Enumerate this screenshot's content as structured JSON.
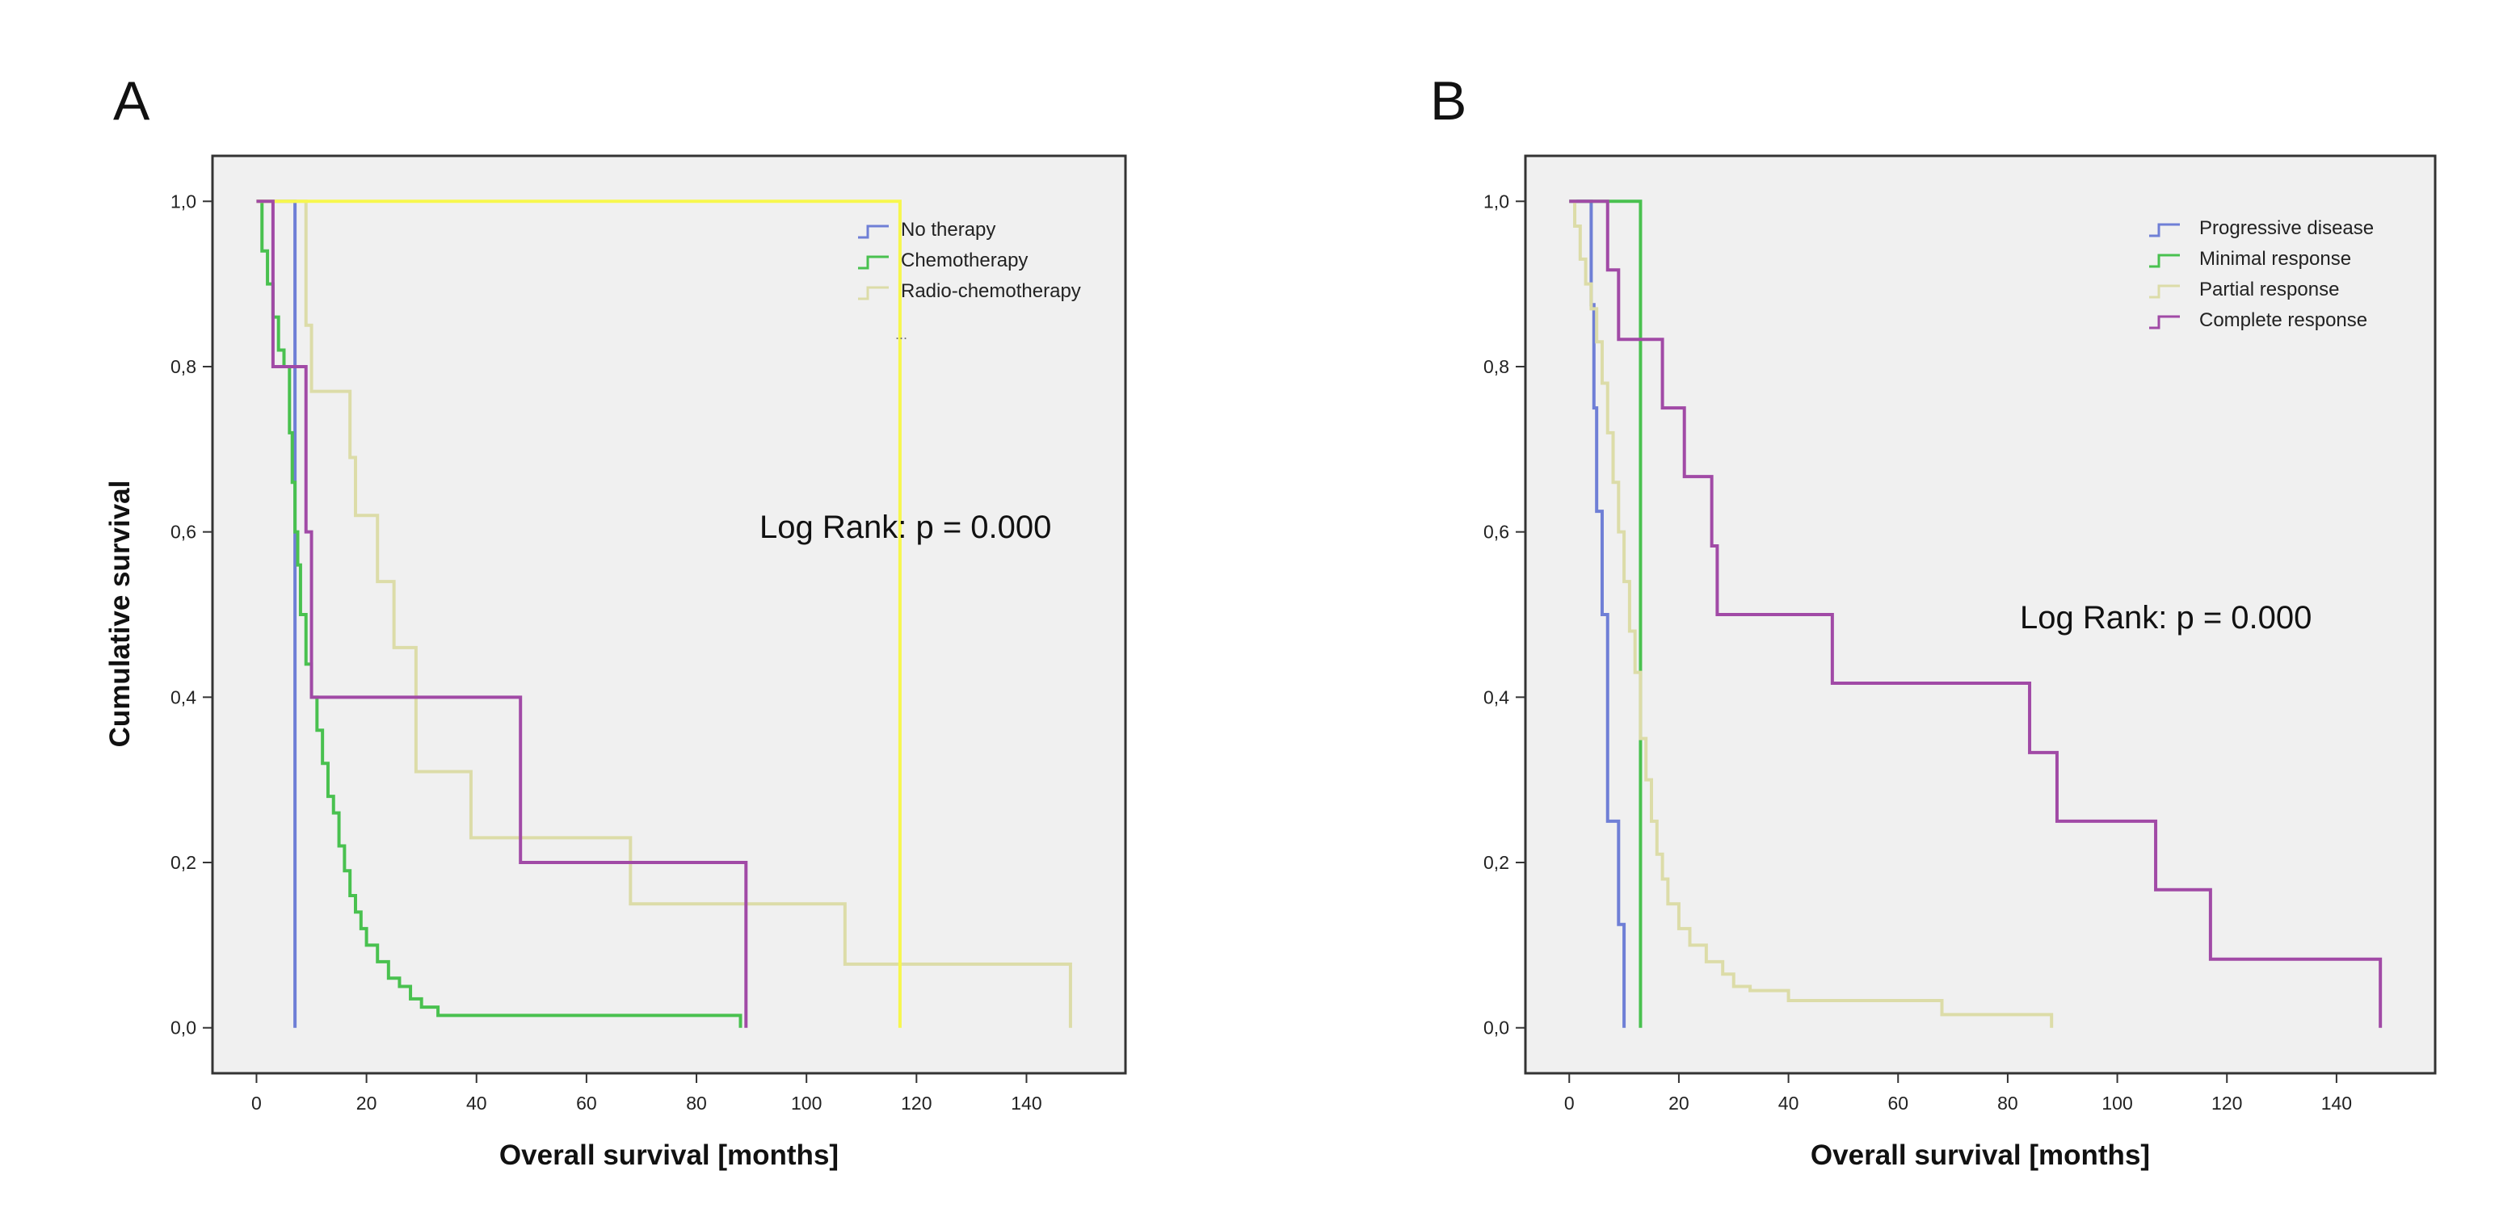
{
  "colors": {
    "blue": "#6f7fd6",
    "green": "#49c14f",
    "tan": "#dcdca8",
    "yellow": "#f7f74d",
    "purple": "#a14aa6"
  },
  "chart_data": [
    {
      "panel": "A",
      "type": "line",
      "step": true,
      "xlabel": "Overall survival [months]",
      "ylabel": "Cumulative survival",
      "xlim": [
        -8,
        158
      ],
      "ylim": [
        -0.055,
        1.055
      ],
      "xticks": [
        0,
        20,
        40,
        60,
        80,
        100,
        120,
        140
      ],
      "yticks": [
        0,
        0.2,
        0.4,
        0.6,
        0.8,
        1.0
      ],
      "ytick_labels": [
        "0,0",
        "0,2",
        "0,4",
        "0,6",
        "0,8",
        "1,0"
      ],
      "legend_position": "top-right",
      "annotation": "Log Rank: p = 0.000",
      "legend_extra": "...",
      "series": [
        {
          "name": "No therapy",
          "color_key": "blue",
          "in_legend": true,
          "x": [
            0,
            7,
            7
          ],
          "y": [
            1.0,
            1.0,
            0.0
          ]
        },
        {
          "name": "Chemotherapy",
          "color_key": "green",
          "in_legend": true,
          "x": [
            0,
            1,
            2,
            3,
            4,
            5,
            6,
            6.5,
            7,
            7.5,
            8,
            9,
            10,
            11,
            12,
            13,
            14,
            15,
            16,
            17,
            18,
            19,
            20,
            22,
            24,
            26,
            28,
            30,
            33,
            40,
            60,
            88,
            88
          ],
          "y": [
            1.0,
            0.94,
            0.9,
            0.86,
            0.82,
            0.8,
            0.72,
            0.66,
            0.6,
            0.56,
            0.5,
            0.44,
            0.4,
            0.36,
            0.32,
            0.28,
            0.26,
            0.22,
            0.19,
            0.16,
            0.14,
            0.12,
            0.1,
            0.08,
            0.06,
            0.05,
            0.035,
            0.025,
            0.015,
            0.015,
            0.015,
            0.015,
            0.0
          ]
        },
        {
          "name": "Radio-chemotherapy",
          "color_key": "tan",
          "in_legend": true,
          "x": [
            0,
            8,
            9,
            10,
            16,
            17,
            18,
            22,
            25,
            29,
            39,
            68,
            107,
            148,
            148
          ],
          "y": [
            1.0,
            1.0,
            0.85,
            0.77,
            0.77,
            0.69,
            0.62,
            0.54,
            0.46,
            0.31,
            0.23,
            0.15,
            0.077,
            0.077,
            0.0
          ]
        },
        {
          "name": "Yellow",
          "color_key": "yellow",
          "in_legend": false,
          "x": [
            0,
            84,
            117,
            117
          ],
          "y": [
            1.0,
            1.0,
            0.5,
            0.0
          ]
        },
        {
          "name": "Purple",
          "color_key": "purple",
          "in_legend": false,
          "x": [
            0,
            3,
            9,
            10,
            48,
            89,
            89
          ],
          "y": [
            1.0,
            0.8,
            0.6,
            0.4,
            0.2,
            0.2,
            0.0
          ]
        }
      ]
    },
    {
      "panel": "B",
      "type": "line",
      "step": true,
      "xlabel": "Overall survival [months]",
      "ylabel": "",
      "xlim": [
        -8,
        158
      ],
      "ylim": [
        -0.055,
        1.055
      ],
      "xticks": [
        0,
        20,
        40,
        60,
        80,
        100,
        120,
        140
      ],
      "yticks": [
        0,
        0.2,
        0.4,
        0.6,
        0.8,
        1.0
      ],
      "ytick_labels": [
        "0,0",
        "0,2",
        "0,4",
        "0,6",
        "0,8",
        "1,0"
      ],
      "legend_position": "top-right",
      "annotation": "Log Rank: p = 0.000",
      "series": [
        {
          "name": "Progressive disease",
          "color_key": "blue",
          "in_legend": true,
          "x": [
            0,
            4,
            4.5,
            5,
            6,
            7,
            9,
            10,
            10
          ],
          "y": [
            1.0,
            0.875,
            0.75,
            0.625,
            0.5,
            0.25,
            0.125,
            0.0,
            0.0
          ]
        },
        {
          "name": "Minimal response",
          "color_key": "green",
          "in_legend": true,
          "x": [
            0,
            13,
            13
          ],
          "y": [
            1.0,
            1.0,
            0.0
          ]
        },
        {
          "name": "Partial response",
          "color_key": "tan",
          "in_legend": true,
          "x": [
            0,
            1,
            2,
            3,
            4,
            5,
            6,
            7,
            8,
            9,
            10,
            11,
            12,
            13,
            14,
            15,
            16,
            17,
            18,
            20,
            22,
            25,
            28,
            30,
            33,
            40,
            68,
            88,
            88
          ],
          "y": [
            1.0,
            0.97,
            0.93,
            0.9,
            0.87,
            0.83,
            0.78,
            0.72,
            0.66,
            0.6,
            0.54,
            0.48,
            0.43,
            0.35,
            0.3,
            0.25,
            0.21,
            0.18,
            0.15,
            0.12,
            0.1,
            0.08,
            0.065,
            0.05,
            0.045,
            0.033,
            0.016,
            0.016,
            0.0
          ]
        },
        {
          "name": "Complete response",
          "color_key": "purple",
          "in_legend": true,
          "x": [
            0,
            7,
            9,
            17,
            21,
            26,
            27,
            48,
            84,
            89,
            107,
            117,
            148,
            148
          ],
          "y": [
            1.0,
            0.917,
            0.833,
            0.75,
            0.667,
            0.583,
            0.5,
            0.417,
            0.333,
            0.25,
            0.167,
            0.083,
            0.083,
            0.0
          ]
        }
      ]
    }
  ]
}
